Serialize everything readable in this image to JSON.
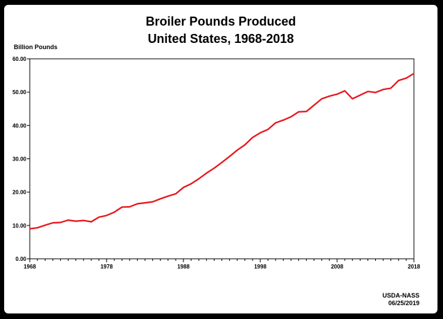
{
  "chart_data": {
    "type": "line",
    "title": "Broiler Pounds Produced",
    "subtitle": "United States, 1968-2018",
    "xlabel": "",
    "ylabel": "Billion Pounds",
    "ylim": [
      0,
      60
    ],
    "xlim": [
      1968,
      2018
    ],
    "y_ticks": [
      "0.00",
      "10.00",
      "20.00",
      "30.00",
      "40.00",
      "50.00",
      "60.00"
    ],
    "y_tick_values": [
      0,
      10,
      20,
      30,
      40,
      50,
      60
    ],
    "x_ticks": [
      "1968",
      "1978",
      "1988",
      "1998",
      "2008",
      "2018"
    ],
    "x_tick_values": [
      1968,
      1978,
      1988,
      1998,
      2008,
      2018
    ],
    "grid": false,
    "series": [
      {
        "name": "Broiler Pounds Produced",
        "color": "#e8141b",
        "x": [
          1968,
          1969,
          1970,
          1971,
          1972,
          1973,
          1974,
          1975,
          1976,
          1977,
          1978,
          1979,
          1980,
          1981,
          1982,
          1983,
          1984,
          1985,
          1986,
          1987,
          1988,
          1989,
          1990,
          1991,
          1992,
          1993,
          1994,
          1995,
          1996,
          1997,
          1998,
          1999,
          2000,
          2001,
          2002,
          2003,
          2004,
          2005,
          2006,
          2007,
          2008,
          2009,
          2010,
          2011,
          2012,
          2013,
          2014,
          2015,
          2016,
          2017,
          2018
        ],
        "values": [
          9.0,
          9.3,
          10.1,
          10.8,
          10.9,
          11.6,
          11.3,
          11.5,
          11.1,
          12.5,
          13.0,
          14.0,
          15.5,
          15.6,
          16.5,
          16.8,
          17.1,
          18.0,
          18.8,
          19.5,
          21.4,
          22.5,
          24.0,
          25.7,
          27.2,
          28.9,
          30.7,
          32.6,
          34.2,
          36.4,
          37.8,
          38.8,
          40.8,
          41.6,
          42.6,
          44.1,
          44.2,
          46.1,
          48.0,
          48.8,
          49.4,
          50.4,
          48.0,
          49.1,
          50.2,
          49.9,
          50.8,
          51.2,
          53.5,
          54.2,
          55.6
        ]
      }
    ]
  },
  "source": {
    "line1": "USDA-NASS",
    "line2": "06/25/2019"
  }
}
